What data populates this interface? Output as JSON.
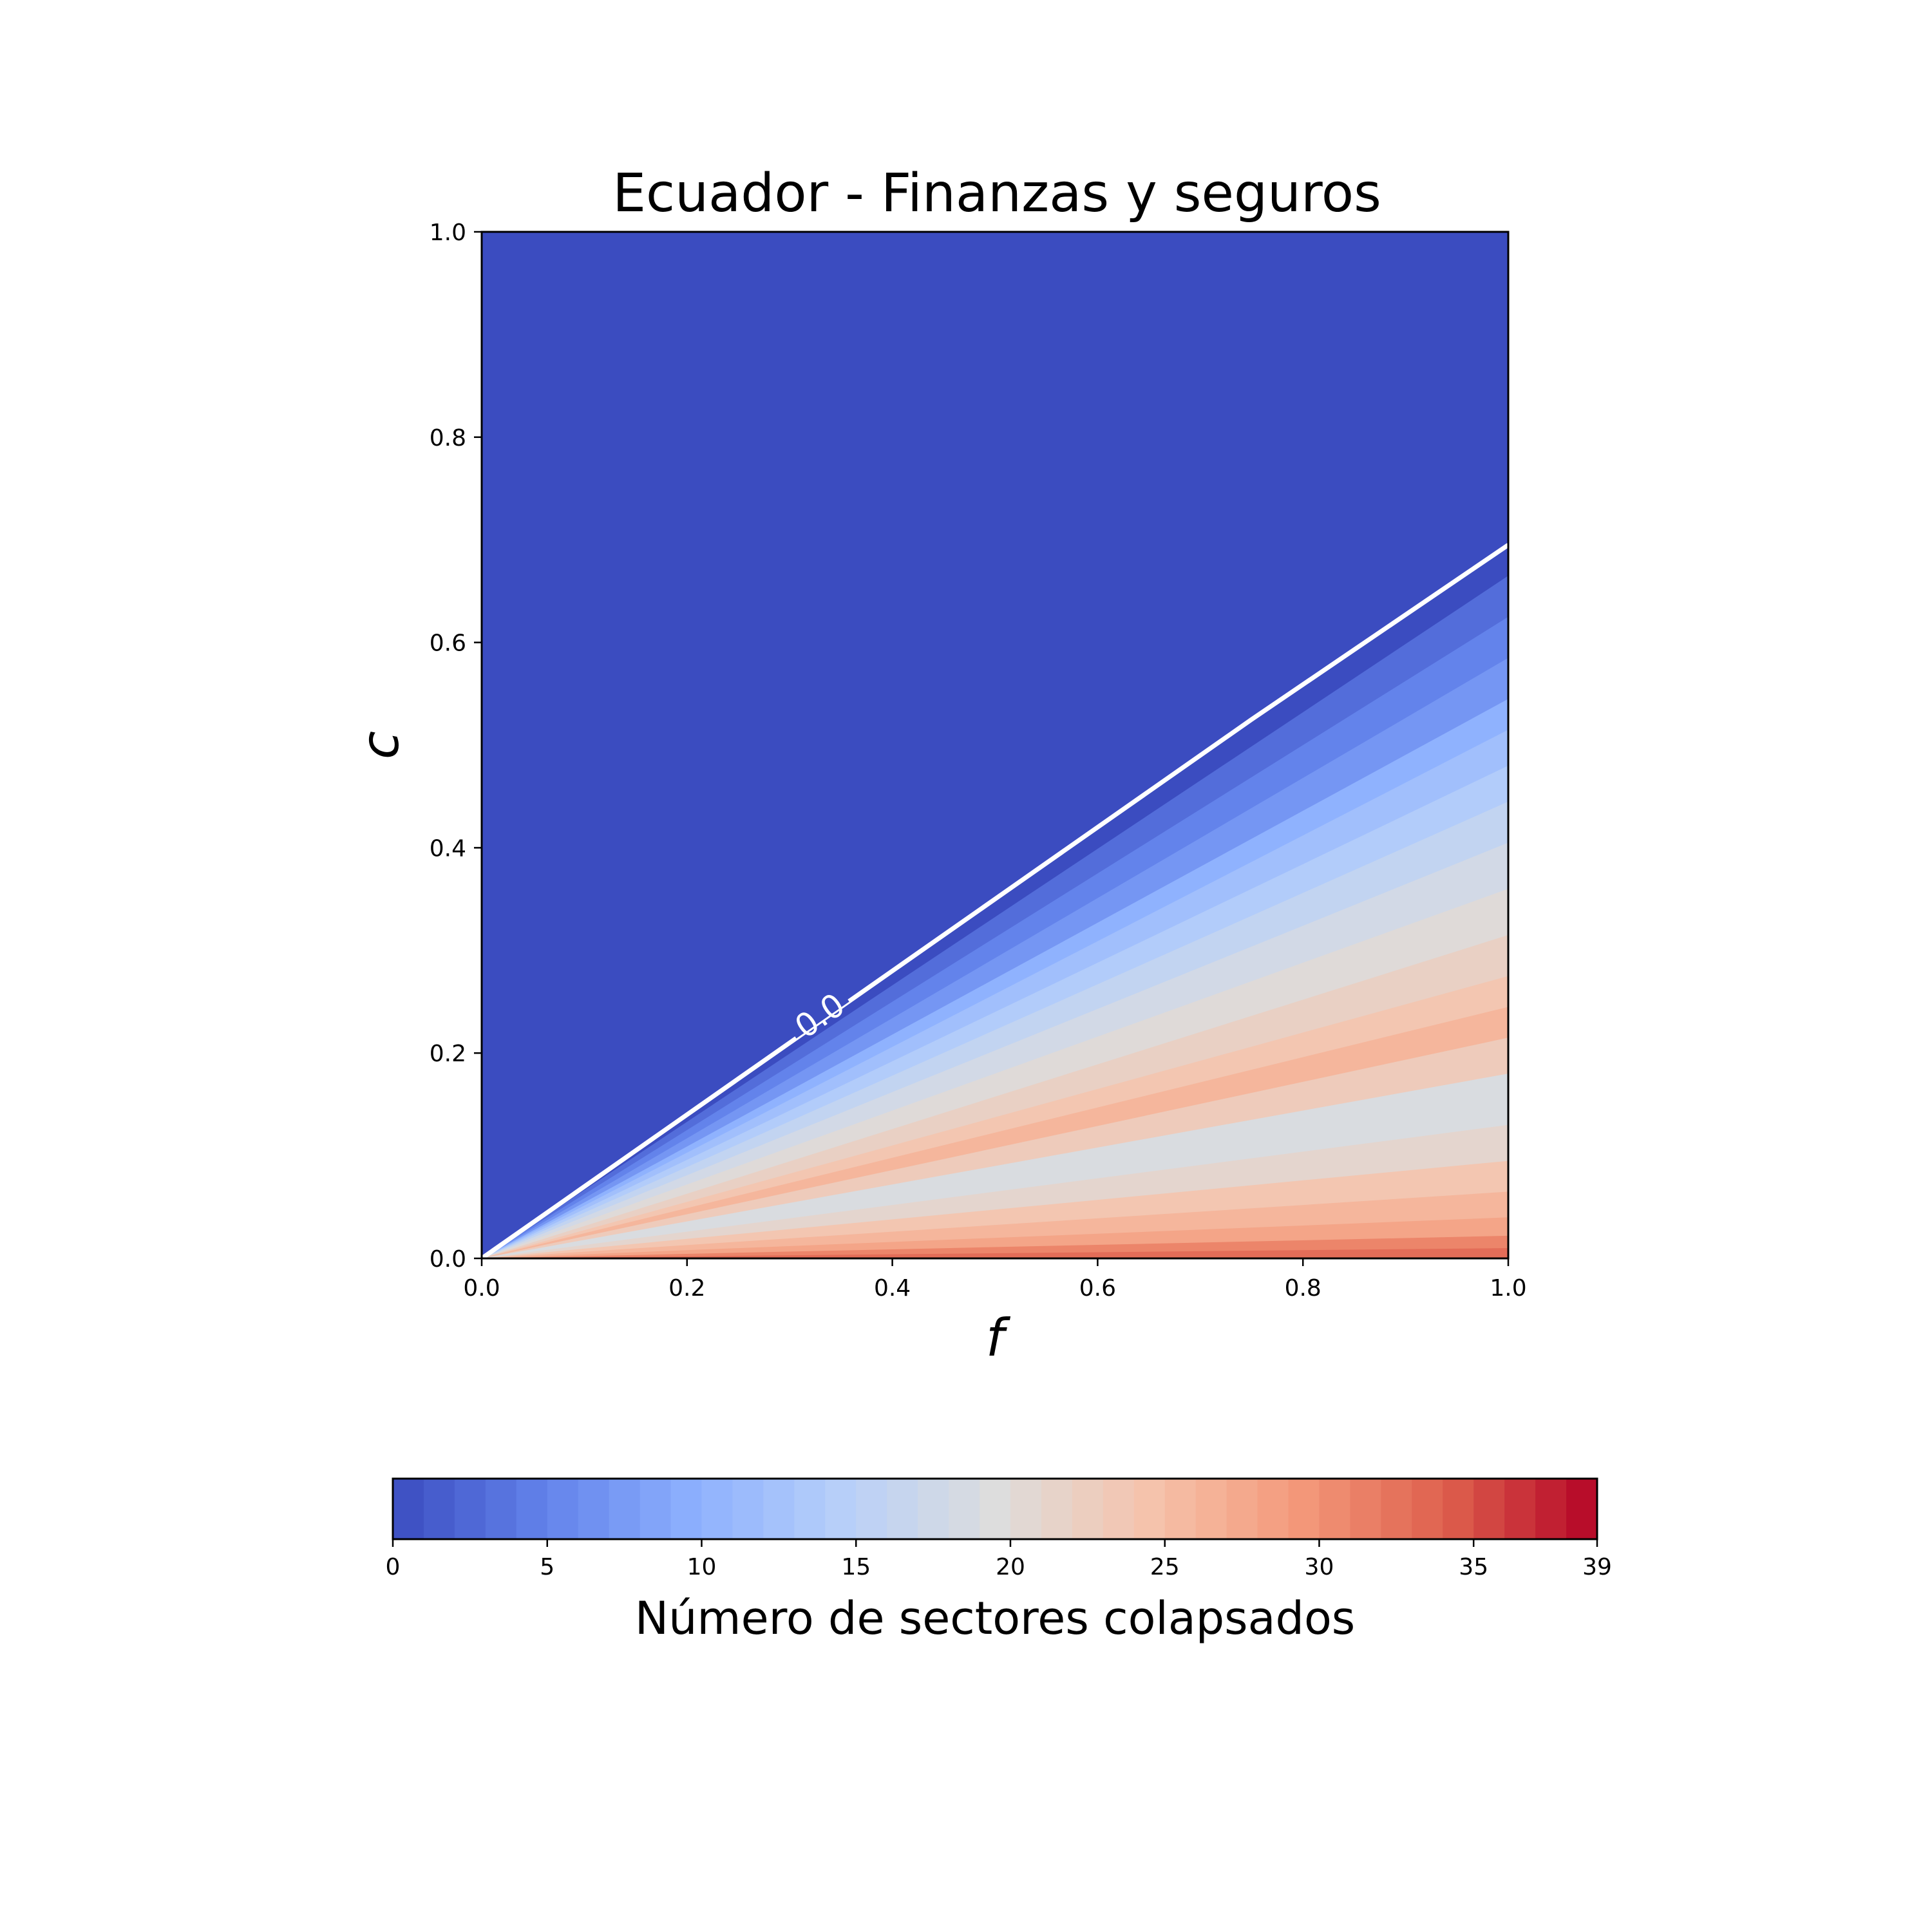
{
  "chart_data": {
    "type": "heatmap",
    "title": "Ecuador - Finanzas y seguros",
    "xlabel": "f",
    "ylabel": "c",
    "xlim": [
      0.0,
      1.0
    ],
    "ylim": [
      0.0,
      1.0
    ],
    "x_ticks": [
      "0.0",
      "0.2",
      "0.4",
      "0.6",
      "0.8",
      "1.0"
    ],
    "y_ticks": [
      "0.0",
      "0.2",
      "0.4",
      "0.6",
      "0.8",
      "1.0"
    ],
    "colormap": "coolwarm",
    "colorbar": {
      "label": "Número de sectores colapsados",
      "min": 0,
      "max": 39,
      "levels": 39,
      "ticks": [
        "0",
        "5",
        "10",
        "15",
        "20",
        "25",
        "30",
        "35",
        "39"
      ],
      "orientation": "horizontal",
      "placement": "bottom"
    },
    "contour": {
      "level_label": "0.0",
      "color": "#ffffff",
      "boundary_c_at_f": [
        [
          0.0,
          0.0
        ],
        [
          0.25,
          0.175
        ],
        [
          0.5,
          0.35
        ],
        [
          0.75,
          0.525
        ],
        [
          1.0,
          0.695
        ]
      ],
      "label_at": [
        0.32,
        0.23
      ]
    },
    "value_bands": [
      {
        "from_slope": 0.695,
        "value": 0
      },
      {
        "from_slope": 0.665,
        "value": 3
      },
      {
        "from_slope": 0.625,
        "value": 5
      },
      {
        "from_slope": 0.585,
        "value": 7
      },
      {
        "from_slope": 0.545,
        "value": 10
      },
      {
        "from_slope": 0.515,
        "value": 12
      },
      {
        "from_slope": 0.48,
        "value": 14
      },
      {
        "from_slope": 0.445,
        "value": 16
      },
      {
        "from_slope": 0.405,
        "value": 18
      },
      {
        "from_slope": 0.36,
        "value": 20
      },
      {
        "from_slope": 0.315,
        "value": 22
      },
      {
        "from_slope": 0.275,
        "value": 24
      },
      {
        "from_slope": 0.245,
        "value": 26
      },
      {
        "from_slope": 0.215,
        "value": 23
      },
      {
        "from_slope": 0.18,
        "value": 19
      },
      {
        "from_slope": 0.13,
        "value": 21
      },
      {
        "from_slope": 0.095,
        "value": 24
      },
      {
        "from_slope": 0.065,
        "value": 26
      },
      {
        "from_slope": 0.04,
        "value": 28
      },
      {
        "from_slope": 0.022,
        "value": 31
      },
      {
        "from_slope": 0.01,
        "value": 33
      }
    ]
  }
}
